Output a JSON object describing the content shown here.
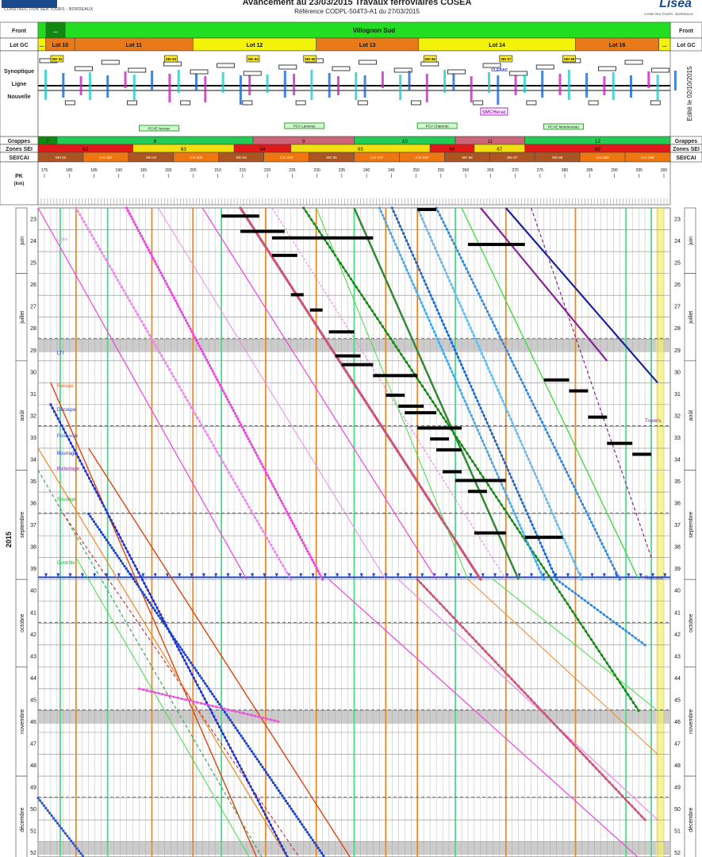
{
  "header": {
    "title": "Avancement au 23/03/2015 Travaux ferroviaires COSEA",
    "reference": "Référence CODPL-504T3-A1 du 27/03/2015",
    "left_logo_subtitle": "CONSTRUCTION SEA TOURS - BORDEAUX",
    "right_logo_word": "Lisea",
    "right_logo_subtitle": "LIGNE SEA TOURS - BORDEAUX"
  },
  "rows": {
    "front": "Front",
    "lot_gc": "Lot GC",
    "synoptique": [
      "Synoptique",
      "Ligne",
      "Nouvelle"
    ],
    "grappes": "Grappes",
    "zones_sei": "Zones SEI",
    "sei_cai": "SEI/CAI",
    "pk": "PK",
    "pk_unit": "(km)"
  },
  "front": {
    "small": "...",
    "main": "Villognon Sud"
  },
  "lots": [
    "...",
    "Lot 10",
    "Lot 11",
    "Lot 12",
    "Lot 13",
    "Lot 14",
    "Lot 16",
    "..."
  ],
  "grappes": [
    "7",
    "8",
    "9",
    "10",
    "11",
    "12"
  ],
  "zones_sei": [
    "62",
    "63",
    "64",
    "65",
    "66",
    "67",
    "68"
  ],
  "sei_cai": [
    "SEI 62",
    "CAI 187",
    "SEI 63",
    "CAI 205",
    "SEI 64",
    "CAI 220",
    "SEI 65",
    "CAI 237",
    "CAI 249",
    "SEI 66",
    "SEI 67",
    "SEI 68",
    "CAI 285",
    "CAI 298"
  ],
  "pk_ticks": [
    "175",
    "180",
    "185",
    "190",
    "195",
    "200",
    "205",
    "210",
    "215",
    "220",
    "225",
    "230",
    "235",
    "240",
    "245",
    "250",
    "255",
    "260",
    "265",
    "270",
    "275",
    "280",
    "285",
    "290",
    "295",
    "300"
  ],
  "edition_note": "Edité le 02/10/2015",
  "year": "2015",
  "weeks": [
    "23",
    "24",
    "25",
    "26",
    "27",
    "28",
    "29",
    "30",
    "31",
    "32",
    "33",
    "34",
    "35",
    "36",
    "37",
    "38",
    "39",
    "40",
    "41",
    "42",
    "43",
    "44",
    "45",
    "46",
    "47",
    "48",
    "49",
    "50",
    "51",
    "52"
  ],
  "months": [
    "juin",
    "juillet",
    "août",
    "septembre",
    "octobre",
    "novembre",
    "décembre"
  ],
  "synoptic_labels": [
    "SEI 62",
    "SEI 63",
    "SEI 64",
    "SEI 65",
    "SEI 66",
    "SEI 67",
    "SEI 68",
    "CLERAC",
    "SMCHerac",
    "PCVE Nersac",
    "PCV Lamerac",
    "PCV Charente",
    "PCVE Montmoreau"
  ],
  "annotations": [
    "Libre",
    "LTI",
    "Rasage",
    "Découpe",
    "Pose voie",
    "Bourrage",
    "Ballastage",
    "Soudage",
    "Contrôle",
    "Travers.",
    "Raccord"
  ],
  "colors": {
    "front_green": "#22dd22",
    "lot_orange": "#e87a1a",
    "lot_yellow": "#f2f20a",
    "grappe_green": "#22cc55",
    "grappe_rose": "#cc6677",
    "sei_red": "#e01818",
    "sei_yellow": "#f0e010",
    "sei_cai_brown": "#aa5522",
    "sei_cai_orange": "#ee7711"
  }
}
